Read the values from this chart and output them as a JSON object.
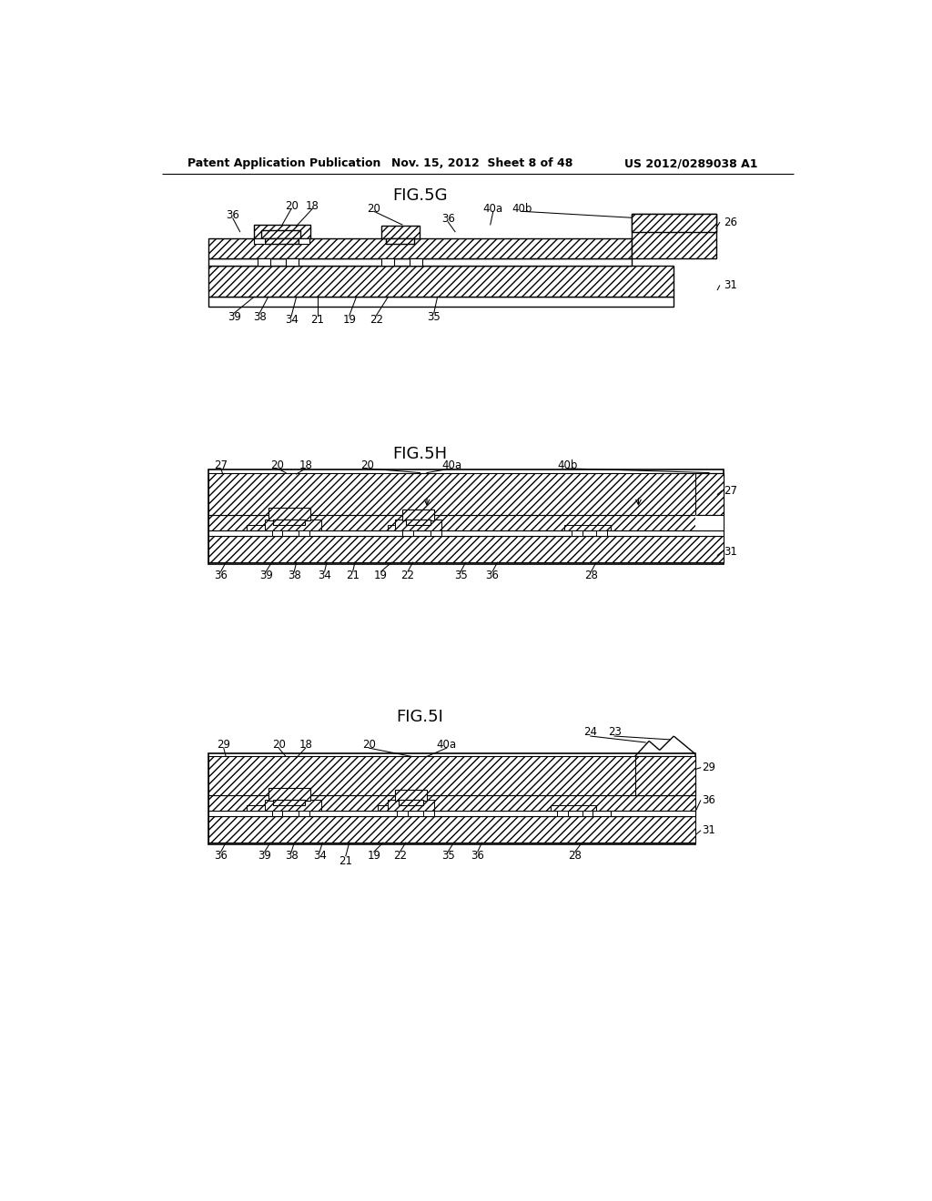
{
  "bg_color": "#ffffff",
  "header_left": "Patent Application Publication",
  "header_mid": "Nov. 15, 2012  Sheet 8 of 48",
  "header_right": "US 2012/0289038 A1",
  "fig5g_title": "FIG.5G",
  "fig5h_title": "FIG.5H",
  "fig5i_title": "FIG.5I"
}
